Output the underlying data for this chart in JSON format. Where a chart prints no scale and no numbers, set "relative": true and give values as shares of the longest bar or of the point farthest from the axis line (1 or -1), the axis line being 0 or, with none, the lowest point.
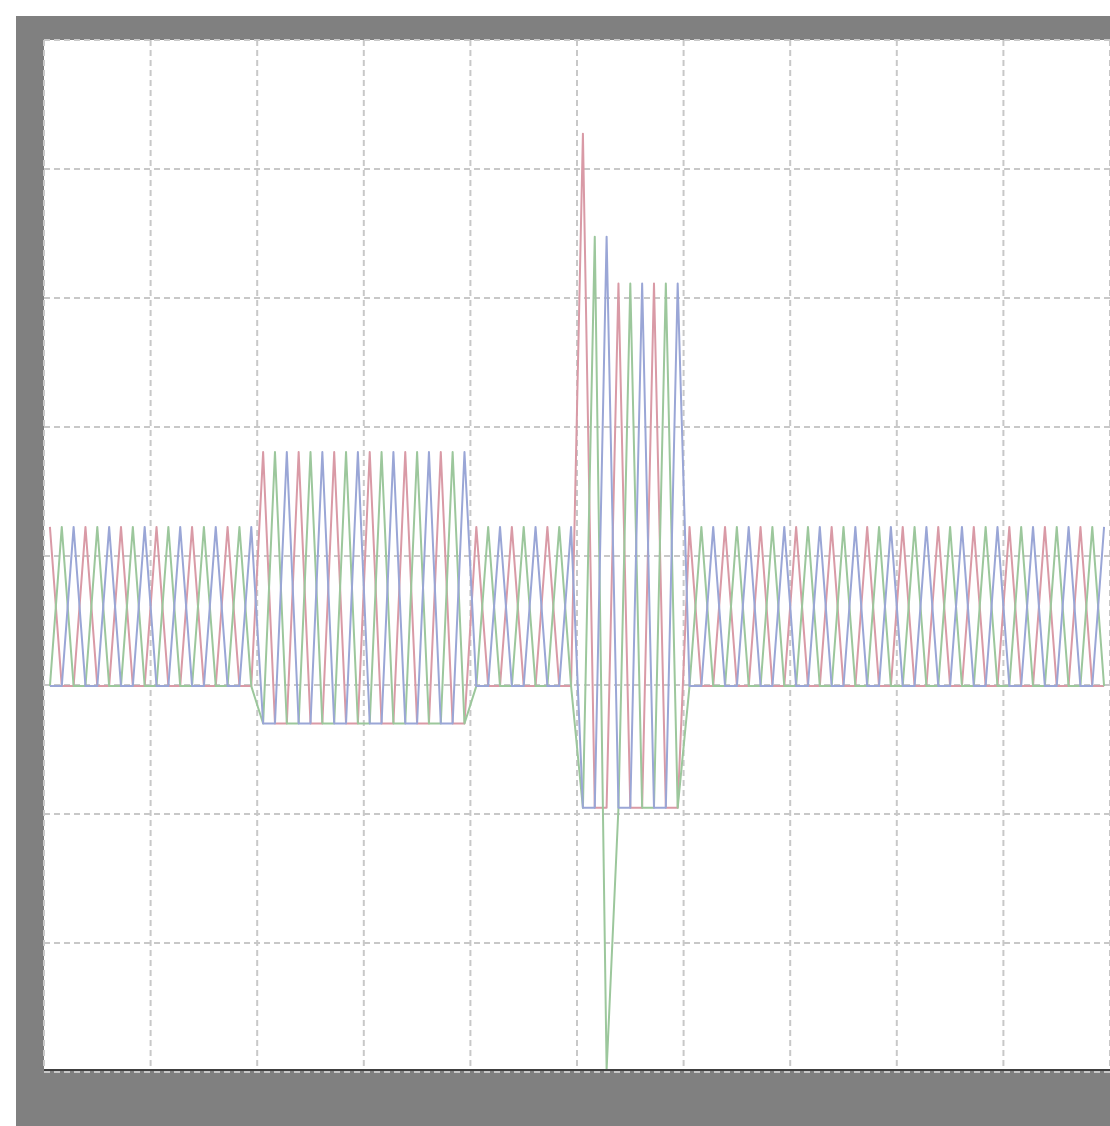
{
  "chart_data": {
    "type": "line",
    "relative": true,
    "grid": true,
    "marker": "none",
    "line_style": "solid",
    "categories": [
      null,
      null,
      null,
      null,
      null,
      null,
      null,
      null,
      null,
      null,
      null,
      null,
      null,
      null,
      null,
      null,
      null,
      null,
      null,
      null,
      null,
      null,
      null,
      null,
      null,
      null,
      null,
      null,
      null,
      null,
      null,
      null,
      null,
      null,
      null,
      null,
      null,
      null,
      null,
      null,
      null,
      null,
      null,
      null,
      null,
      null,
      null,
      null,
      null,
      null,
      null,
      null,
      null,
      null,
      null,
      null,
      null,
      null,
      null,
      null,
      null,
      null,
      null,
      null,
      null,
      null,
      null,
      null,
      null,
      null,
      null,
      null,
      null,
      null,
      null,
      null,
      null,
      null,
      null,
      null,
      null,
      null,
      null,
      null,
      null,
      null,
      null,
      null,
      null,
      null
    ],
    "series": [
      {
        "color": "#d99aa6",
        "values": [
          0.58,
          0.41,
          0.41,
          0.58,
          0.41,
          0.41,
          0.58,
          0.41,
          0.41,
          0.58,
          0.41,
          0.41,
          0.58,
          0.41,
          0.41,
          0.58,
          0.41,
          0.41,
          0.66,
          0.37,
          0.37,
          0.66,
          0.37,
          0.37,
          0.66,
          0.37,
          0.37,
          0.66,
          0.37,
          0.37,
          0.66,
          0.37,
          0.37,
          0.66,
          0.37,
          0.37,
          0.58,
          0.41,
          0.41,
          0.58,
          0.41,
          0.41,
          0.58,
          0.41,
          0.41,
          1,
          0.28,
          0.28,
          0.84,
          0.28,
          0.28,
          0.84,
          0.28,
          0.28,
          0.58,
          0.41,
          0.41,
          0.58,
          0.41,
          0.41,
          0.58,
          0.41,
          0.41,
          0.58,
          0.41,
          0.41,
          0.58,
          0.41,
          0.41,
          0.58,
          0.41,
          0.41,
          0.58,
          0.41,
          0.41,
          0.58,
          0.41,
          0.41,
          0.58,
          0.41,
          0.41,
          0.58,
          0.41,
          0.41,
          0.58,
          0.41,
          0.41,
          0.58,
          0.41,
          0.41
        ]
      },
      {
        "color": "#9cc79c",
        "values": [
          0.41,
          0.58,
          0.41,
          0.41,
          0.58,
          0.41,
          0.41,
          0.58,
          0.41,
          0.41,
          0.58,
          0.41,
          0.41,
          0.58,
          0.41,
          0.41,
          0.58,
          0.41,
          0.37,
          0.66,
          0.37,
          0.37,
          0.66,
          0.37,
          0.37,
          0.66,
          0.37,
          0.37,
          0.66,
          0.37,
          0.37,
          0.66,
          0.37,
          0.37,
          0.66,
          0.37,
          0.41,
          0.58,
          0.41,
          0.41,
          0.58,
          0.41,
          0.41,
          0.58,
          0.41,
          0.28,
          0.89,
          0,
          0.28,
          0.84,
          0.28,
          0.28,
          0.84,
          0.28,
          0.41,
          0.58,
          0.41,
          0.41,
          0.58,
          0.41,
          0.41,
          0.58,
          0.41,
          0.41,
          0.58,
          0.41,
          0.41,
          0.58,
          0.41,
          0.41,
          0.58,
          0.41,
          0.41,
          0.58,
          0.41,
          0.41,
          0.58,
          0.41,
          0.41,
          0.58,
          0.41,
          0.41,
          0.58,
          0.41,
          0.41,
          0.58,
          0.41,
          0.41,
          0.58,
          0.41
        ]
      },
      {
        "color": "#9aa6d6",
        "values": [
          0.41,
          0.41,
          0.58,
          0.41,
          0.41,
          0.58,
          0.41,
          0.41,
          0.58,
          0.41,
          0.41,
          0.58,
          0.41,
          0.41,
          0.58,
          0.41,
          0.41,
          0.58,
          0.37,
          0.37,
          0.66,
          0.37,
          0.37,
          0.66,
          0.37,
          0.37,
          0.66,
          0.37,
          0.37,
          0.66,
          0.37,
          0.37,
          0.66,
          0.37,
          0.37,
          0.66,
          0.41,
          0.41,
          0.58,
          0.41,
          0.41,
          0.58,
          0.41,
          0.41,
          0.58,
          0.28,
          0.28,
          0.89,
          0.28,
          0.28,
          0.84,
          0.28,
          0.28,
          0.84,
          0.41,
          0.41,
          0.58,
          0.41,
          0.41,
          0.58,
          0.41,
          0.41,
          0.58,
          0.41,
          0.41,
          0.58,
          0.41,
          0.41,
          0.58,
          0.41,
          0.41,
          0.58,
          0.41,
          0.41,
          0.58,
          0.41,
          0.41,
          0.58,
          0.41,
          0.41,
          0.58,
          0.41,
          0.41,
          0.58,
          0.41,
          0.41,
          0.58,
          0.41,
          0.41,
          0.58
        ]
      }
    ]
  }
}
